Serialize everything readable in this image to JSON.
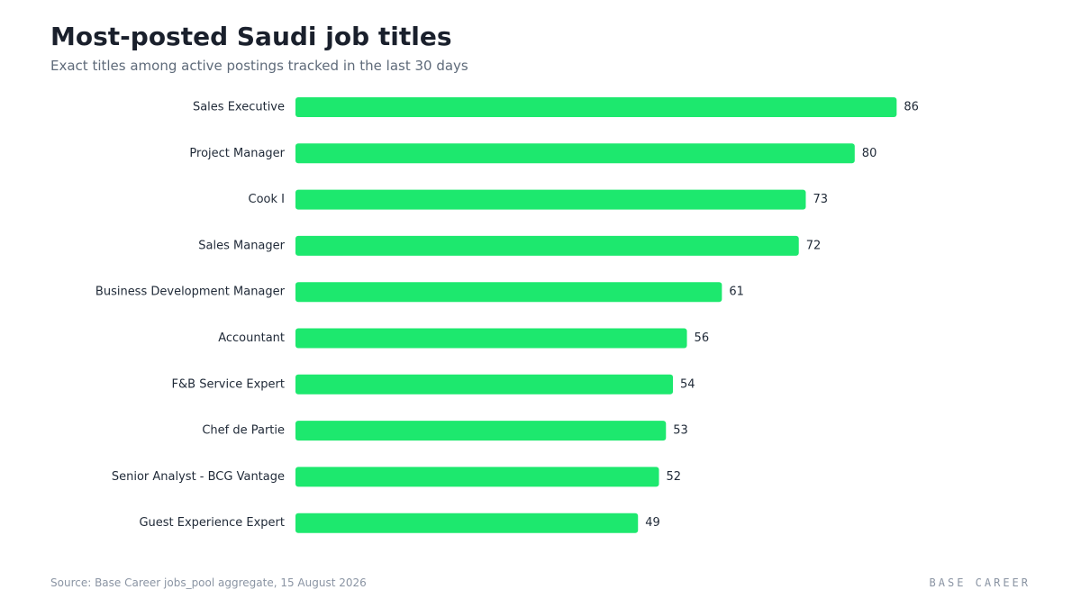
{
  "chart_data": {
    "type": "bar",
    "orientation": "horizontal",
    "title": "Most-posted Saudi job titles",
    "subtitle": "Exact titles among active postings tracked in the last 30 days",
    "categories": [
      "Sales Executive",
      "Project Manager",
      "Cook I",
      "Sales Manager",
      "Business Development Manager",
      "Accountant",
      "F&B Service Expert",
      "Chef de Partie",
      "Senior Analyst - BCG Vantage",
      "Guest Experience Expert"
    ],
    "values": [
      86,
      80,
      73,
      72,
      61,
      56,
      54,
      53,
      52,
      49
    ],
    "xlim": [
      0,
      100
    ],
    "grid": false,
    "legend": "none",
    "bar_color": "#1de86e"
  },
  "footer": {
    "source": "Source: Base Career jobs_pool aggregate, 15 August 2026",
    "brand": "BASE CAREER"
  }
}
